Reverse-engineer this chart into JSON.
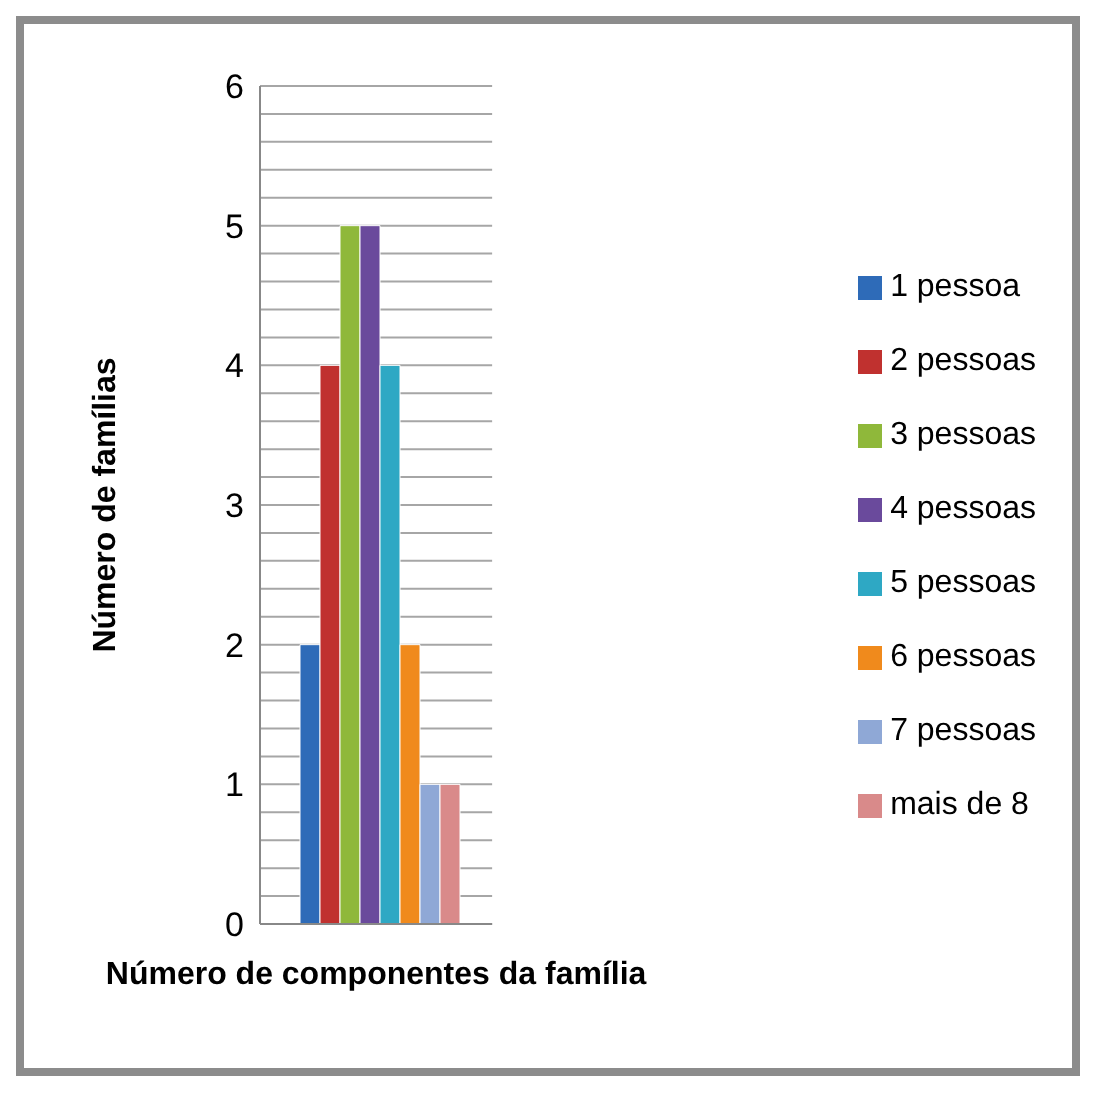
{
  "chart_data": {
    "type": "bar",
    "xlabel": "Número de componentes da família",
    "ylabel": "Número de famílias",
    "categories": [
      null
    ],
    "series": [
      {
        "name": "1 pessoa",
        "color": "#2e6bb8",
        "values": [
          2
        ]
      },
      {
        "name": "2 pessoas",
        "color": "#c0312f",
        "values": [
          4
        ]
      },
      {
        "name": "3 pessoas",
        "color": "#8fb83a",
        "values": [
          5
        ]
      },
      {
        "name": "4 pessoas",
        "color": "#6a4a9c",
        "values": [
          5
        ]
      },
      {
        "name": "5 pessoas",
        "color": "#2ea8c4",
        "values": [
          4
        ]
      },
      {
        "name": "6 pessoas",
        "color": "#f08a1c",
        "values": [
          2
        ]
      },
      {
        "name": "7 pessoas",
        "color": "#8fa8d6",
        "values": [
          1
        ]
      },
      {
        "name": "mais de 8",
        "color": "#d98a8a",
        "values": [
          1
        ]
      }
    ],
    "ylim": [
      0,
      6
    ],
    "yticks": [
      0,
      {
        "value": 0.2,
        "label": null
      },
      {
        "value": 0.4,
        "label": null
      },
      {
        "value": 0.6,
        "label": null
      },
      {
        "value": 0.8,
        "label": null
      },
      1,
      {
        "value": 1.2,
        "label": null
      },
      {
        "value": 1.4,
        "label": null
      },
      {
        "value": 1.6,
        "label": null
      },
      {
        "value": 1.8,
        "label": null
      },
      2,
      {
        "value": 2.2,
        "label": null
      },
      {
        "value": 2.4,
        "label": null
      },
      {
        "value": 2.6,
        "label": null
      },
      {
        "value": 2.8,
        "label": null
      },
      3,
      {
        "value": 3.2,
        "label": null
      },
      {
        "value": 3.4,
        "label": null
      },
      {
        "value": 3.6,
        "label": null
      },
      {
        "value": 3.8,
        "label": null
      },
      4,
      {
        "value": 4.2,
        "label": null
      },
      {
        "value": 4.4,
        "label": null
      },
      {
        "value": 4.6,
        "label": null
      },
      {
        "value": 4.8,
        "label": null
      },
      5,
      {
        "value": 5.2,
        "label": null
      },
      {
        "value": 5.4,
        "label": null
      },
      {
        "value": 5.6,
        "label": null
      },
      {
        "value": 5.8,
        "label": null
      },
      6
    ],
    "grid": "y",
    "legend": "right",
    "tick_labels": "y"
  }
}
